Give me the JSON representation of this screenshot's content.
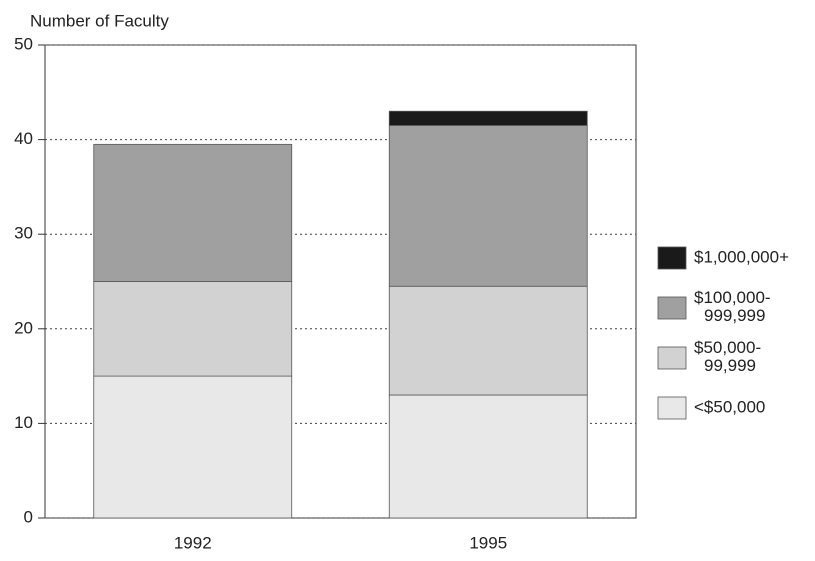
{
  "chart_data": {
    "type": "stacked_bar",
    "y_axis_label": "Number of Faculty",
    "categories": [
      "1992",
      "1995"
    ],
    "series": [
      {
        "name": "<$50,000",
        "color": "#e8e8e8",
        "values": [
          15,
          13
        ]
      },
      {
        "name": "$50,000-\n99,999",
        "color": "#d2d2d2",
        "values": [
          10,
          11.5
        ]
      },
      {
        "name": "$100,000-\n999,999",
        "color": "#a0a0a0",
        "values": [
          14.5,
          17
        ]
      },
      {
        "name": "$1,000,000+",
        "color": "#1a1a1a",
        "values": [
          0,
          1.5
        ]
      }
    ],
    "ylim": [
      0,
      50
    ],
    "yticks": [
      0,
      10,
      20,
      30,
      40,
      50
    ],
    "grid": true,
    "legend": "right"
  }
}
